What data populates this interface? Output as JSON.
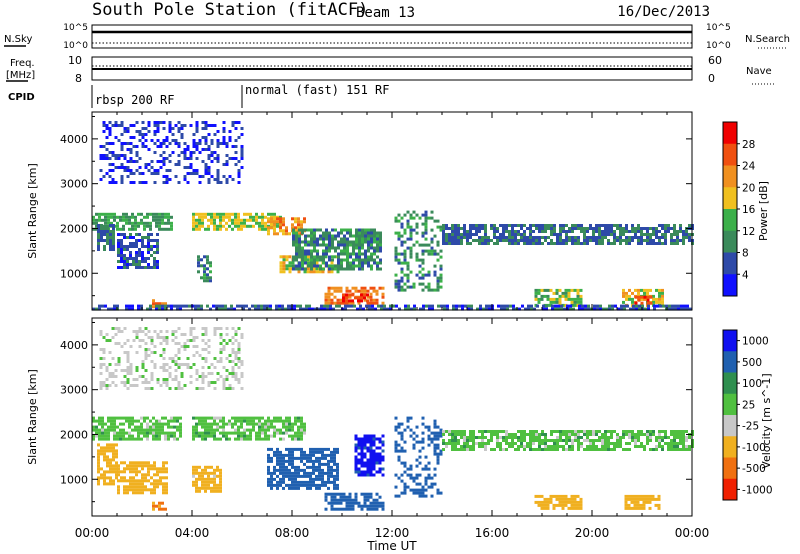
{
  "header": {
    "station_title": "South Pole Station (fitACF)",
    "beam_label": "Beam 13",
    "date": "16/Dec/2013"
  },
  "left_labels": {
    "nsky": "N.Sky",
    "freq_line1": "Freq.",
    "freq_line2": "[MHz]",
    "cpid": "CPID"
  },
  "right_labels": {
    "nsearch": "N.Search",
    "nave": "Nave"
  },
  "strip_ticks": {
    "noise_top_left": "10^5",
    "noise_bottom_left": "10^0",
    "noise_top_right": "10^5",
    "noise_bottom_right": "10^0",
    "freq_top": "10",
    "freq_bottom": "8",
    "nave_top": "60",
    "nave_bottom": "0"
  },
  "cpid_modes": [
    {
      "label": "rbsp 200 RF",
      "start_hour": 0
    },
    {
      "label": "normal (fast) 151 RF",
      "start_hour": 6
    }
  ],
  "x_axis_title": "Time UT",
  "x_tick_labels": [
    "00:00",
    "04:00",
    "08:00",
    "12:00",
    "16:00",
    "20:00",
    "00:00"
  ],
  "colors": {
    "power": [
      "#1010ff",
      "#2e4aa8",
      "#3a8a5a",
      "#3cb04a",
      "#f0c020",
      "#f09020",
      "#f05010",
      "#f00000"
    ],
    "velocity": [
      "#1010f0",
      "#2060b0",
      "#2f8f4f",
      "#50c040",
      "#c8c8c8",
      "#f0b020",
      "#f07010",
      "#f02000"
    ]
  },
  "chart_data": [
    {
      "type": "heatmap",
      "title": "",
      "ylabel": "Slant Range [km]",
      "xlabel": "",
      "xlim": [
        0,
        24
      ],
      "ylim": [
        180,
        4600
      ],
      "y_tick_labels": [
        "1000",
        "2000",
        "3000",
        "4000"
      ],
      "colorbar_label": "Power [dB]",
      "colorbar_tick_labels": [
        "4",
        "8",
        "12",
        "16",
        "20",
        "24",
        "28"
      ],
      "colorbar_range": [
        0,
        32
      ],
      "bands": [
        {
          "t0": 0.0,
          "t1": 3.2,
          "r0": 1950,
          "r1": 2350,
          "value": 12
        },
        {
          "t0": 0.2,
          "t1": 0.9,
          "r0": 1500,
          "r1": 2100,
          "value": 8
        },
        {
          "t0": 1.0,
          "t1": 2.6,
          "r0": 1100,
          "r1": 1900,
          "value": 6
        },
        {
          "t0": 2.4,
          "t1": 2.9,
          "r0": 250,
          "r1": 420,
          "value": 24
        },
        {
          "t0": 4.0,
          "t1": 7.5,
          "r0": 1950,
          "r1": 2350,
          "value": 16
        },
        {
          "t0": 4.2,
          "t1": 4.8,
          "r0": 800,
          "r1": 1400,
          "value": 10
        },
        {
          "t0": 7.0,
          "t1": 8.5,
          "r0": 1900,
          "r1": 2250,
          "value": 22
        },
        {
          "t0": 7.5,
          "t1": 9.8,
          "r0": 1000,
          "r1": 1400,
          "value": 18
        },
        {
          "t0": 8.0,
          "t1": 11.6,
          "r0": 1100,
          "r1": 2000,
          "value": 10
        },
        {
          "t0": 9.3,
          "t1": 11.7,
          "r0": 300,
          "r1": 700,
          "value": 24
        },
        {
          "t0": 10.0,
          "t1": 11.0,
          "r0": 350,
          "r1": 550,
          "value": 28
        },
        {
          "t0": 12.1,
          "t1": 14.0,
          "r0": 600,
          "r1": 2400,
          "value": 10
        },
        {
          "t0": 14.0,
          "t1": 24.0,
          "r0": 1650,
          "r1": 2100,
          "value": 8
        },
        {
          "t0": 17.7,
          "t1": 19.6,
          "r0": 300,
          "r1": 650,
          "value": 14
        },
        {
          "t0": 21.2,
          "t1": 22.8,
          "r0": 300,
          "r1": 650,
          "value": 18
        },
        {
          "t0": 21.7,
          "t1": 22.4,
          "r0": 350,
          "r1": 500,
          "value": 28
        },
        {
          "t0": 0.0,
          "t1": 24.0,
          "r0": 180,
          "r1": 300,
          "value": 6
        },
        {
          "t0": 0.3,
          "t1": 6.0,
          "r0": 3000,
          "r1": 4400,
          "value": 4
        }
      ]
    },
    {
      "type": "heatmap",
      "title": "",
      "ylabel": "Slant Range [km]",
      "xlabel": "Time UT",
      "xlim": [
        0,
        24
      ],
      "ylim": [
        180,
        4600
      ],
      "y_tick_labels": [
        "1000",
        "2000",
        "3000",
        "4000"
      ],
      "colorbar_label": "Velocity [m s^-1]",
      "colorbar_tick_labels": [
        "1000",
        "500",
        "100",
        "25",
        "-25",
        "-100",
        "-500",
        "-1000"
      ],
      "colorbar_range": [
        -1200,
        1200
      ],
      "bands": [
        {
          "t0": 0.0,
          "t1": 3.5,
          "r0": 1900,
          "r1": 2400,
          "value": 0
        },
        {
          "t0": 0.2,
          "t1": 1.0,
          "r0": 900,
          "r1": 1800,
          "value": -300
        },
        {
          "t0": 1.0,
          "t1": 3.0,
          "r0": 700,
          "r1": 1400,
          "value": -250
        },
        {
          "t0": 2.4,
          "t1": 3.0,
          "r0": 300,
          "r1": 500,
          "value": -600
        },
        {
          "t0": 4.0,
          "t1": 8.5,
          "r0": 1900,
          "r1": 2400,
          "value": 0
        },
        {
          "t0": 4.0,
          "t1": 5.2,
          "r0": 700,
          "r1": 1300,
          "value": -150
        },
        {
          "t0": 7.0,
          "t1": 9.8,
          "r0": 800,
          "r1": 1700,
          "value": 300
        },
        {
          "t0": 9.3,
          "t1": 11.7,
          "r0": 350,
          "r1": 700,
          "value": 250
        },
        {
          "t0": 10.5,
          "t1": 11.7,
          "r0": 1100,
          "r1": 2000,
          "value": 700
        },
        {
          "t0": 12.1,
          "t1": 14.0,
          "r0": 600,
          "r1": 2400,
          "value": 200
        },
        {
          "t0": 14.0,
          "t1": 24.0,
          "r0": 1650,
          "r1": 2100,
          "value": 0
        },
        {
          "t0": 17.7,
          "t1": 19.6,
          "r0": 350,
          "r1": 650,
          "value": -250
        },
        {
          "t0": 21.3,
          "t1": 22.7,
          "r0": 350,
          "r1": 650,
          "value": -350
        },
        {
          "t0": 0.3,
          "t1": 6.0,
          "r0": 3000,
          "r1": 4400,
          "value": -40
        }
      ]
    }
  ]
}
